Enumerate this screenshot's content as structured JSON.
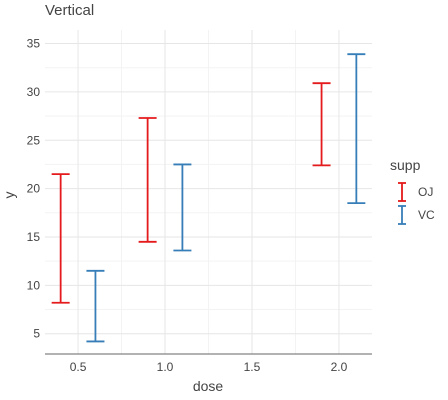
{
  "chart_data": {
    "type": "errorbar",
    "title": "Vertical",
    "xlabel": "dose",
    "ylabel": "y",
    "x_ticks": [
      0.5,
      1.0,
      1.5,
      2.0
    ],
    "x_tick_labels": [
      "0.5",
      "1.0",
      "1.5",
      "2.0"
    ],
    "y_ticks": [
      5,
      10,
      15,
      20,
      25,
      30,
      35
    ],
    "xlim": [
      0.31,
      2.19
    ],
    "ylim": [
      2.9,
      36.4
    ],
    "grid": true,
    "legend": {
      "title": "supp",
      "position": "right"
    },
    "series": [
      {
        "name": "OJ",
        "color": "#e41a1c",
        "points": [
          {
            "x": 0.4,
            "ymin": 8.2,
            "ymax": 21.5
          },
          {
            "x": 0.9,
            "ymin": 14.5,
            "ymax": 27.3
          },
          {
            "x": 1.9,
            "ymin": 22.4,
            "ymax": 30.9
          }
        ]
      },
      {
        "name": "VC",
        "color": "#377eb8",
        "points": [
          {
            "x": 0.6,
            "ymin": 4.2,
            "ymax": 11.5
          },
          {
            "x": 1.1,
            "ymin": 13.6,
            "ymax": 22.5
          },
          {
            "x": 2.1,
            "ymin": 18.5,
            "ymax": 33.9
          }
        ]
      }
    ]
  }
}
